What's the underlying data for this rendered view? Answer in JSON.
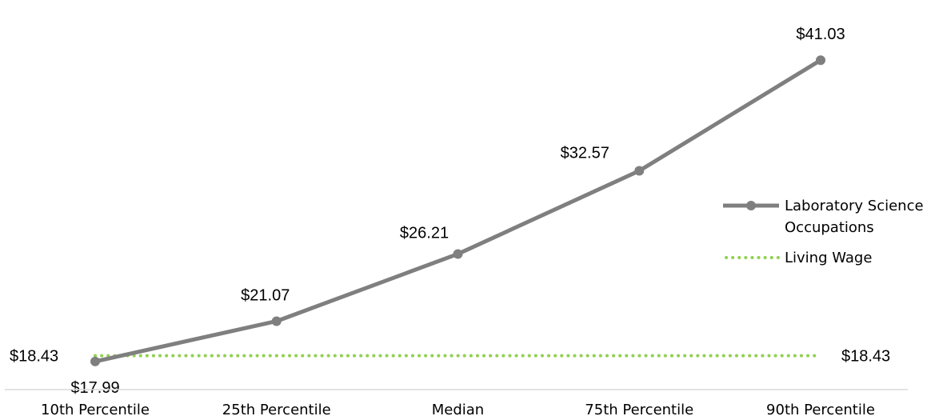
{
  "chart_data": {
    "type": "line",
    "categories": [
      "10th Percentile",
      "25th Percentile",
      "Median",
      "75th Percentile",
      "90th Percentile"
    ],
    "series": [
      {
        "name": "Laboratory Science Occupations",
        "values": [
          17.99,
          21.07,
          26.21,
          32.57,
          41.03
        ],
        "labels": [
          "$17.99",
          "$21.07",
          "$26.21",
          "$32.57",
          "$41.03"
        ],
        "color": "#7f7f7f",
        "style": "solid-with-markers"
      },
      {
        "name": "Living Wage",
        "values": [
          18.43,
          18.43,
          18.43,
          18.43,
          18.43
        ],
        "labels": [
          "$18.43",
          "$18.43"
        ],
        "color": "#92d050",
        "style": "dotted"
      }
    ],
    "ylim": [
      17.0,
      43.0
    ],
    "grid": false,
    "legend": "right",
    "xlabel": "",
    "ylabel": "",
    "title": ""
  }
}
